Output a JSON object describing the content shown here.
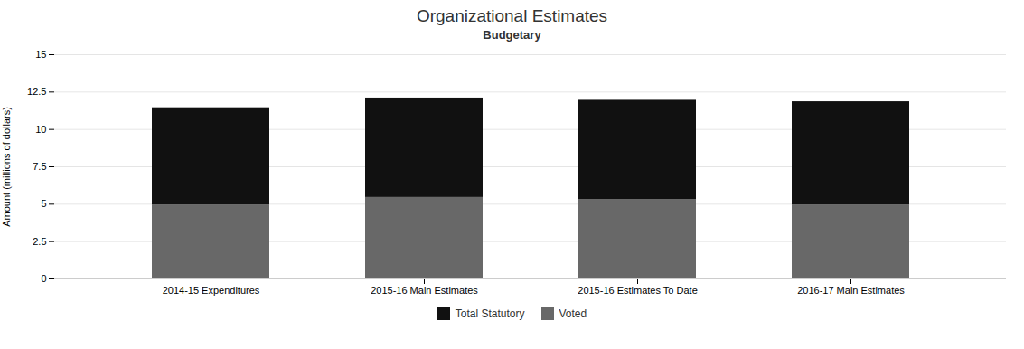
{
  "chart_data": {
    "type": "bar",
    "title": "Organizational Estimates",
    "subtitle": "Budgetary",
    "categories": [
      "2014-15 Expenditures",
      "2015-16 Main Estimates",
      "2015-16 Estimates To Date",
      "2016-17 Main Estimates"
    ],
    "series": [
      {
        "name": "Voted",
        "color": "#686868",
        "values": [
          4.95,
          5.45,
          5.3,
          4.95
        ]
      },
      {
        "name": "Total Statutory",
        "color": "#111111",
        "values": [
          6.5,
          6.65,
          6.65,
          6.9
        ]
      }
    ],
    "stacked": true,
    "ylabel": "Amount (millions of dollars)",
    "ylim": [
      0,
      15
    ],
    "yticks": [
      0,
      2.5,
      5,
      7.5,
      10,
      12.5,
      15
    ],
    "grid": true,
    "legend": "bottom"
  }
}
